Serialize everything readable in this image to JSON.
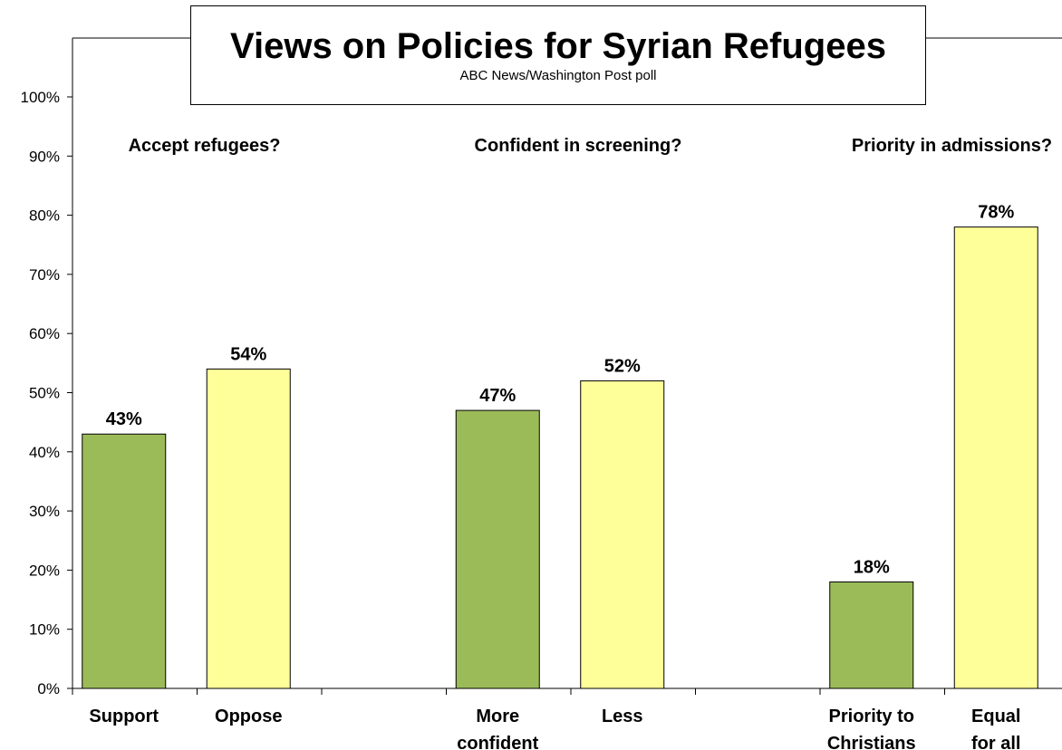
{
  "chart_data": {
    "type": "bar",
    "title": "Views on Policies for Syrian Refugees",
    "subtitle": "ABC News/Washington  Post poll",
    "ylim": [
      0,
      100
    ],
    "yticks": [
      "0%",
      "10%",
      "20%",
      "30%",
      "40%",
      "50%",
      "60%",
      "70%",
      "80%",
      "90%",
      "100%"
    ],
    "grid": false,
    "groups": [
      {
        "question": "Accept refugees?",
        "bars": [
          {
            "label": [
              "Support"
            ],
            "value": 43,
            "value_label": "43%"
          },
          {
            "label": [
              "Oppose"
            ],
            "value": 54,
            "value_label": "54%"
          }
        ]
      },
      {
        "question": "Confident in screening?",
        "bars": [
          {
            "label": [
              "More",
              "confident"
            ],
            "value": 47,
            "value_label": "47%"
          },
          {
            "label": [
              "Less"
            ],
            "value": 52,
            "value_label": "52%"
          }
        ]
      },
      {
        "question": "Priority in admissions?",
        "bars": [
          {
            "label": [
              "Priority to",
              "Christians"
            ],
            "value": 18,
            "value_label": "18%"
          },
          {
            "label": [
              "Equal",
              "for all"
            ],
            "value": 78,
            "value_label": "78%"
          }
        ]
      }
    ],
    "colors": {
      "first": "#9BBB59",
      "second": "#FFFF99",
      "outline": "#000000"
    }
  }
}
